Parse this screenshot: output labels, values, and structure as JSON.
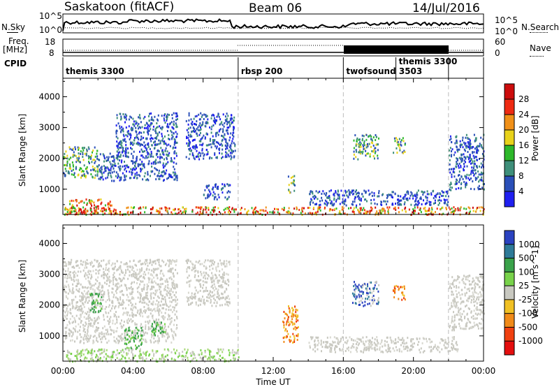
{
  "header": {
    "station": "Saskatoon (fitACF)",
    "beam": "Beam 06",
    "date": "14/Jul/2016"
  },
  "noise_panel": {
    "left_label": "N.Sky",
    "right_label": "N.Search",
    "left_ticks": [
      "10^5",
      "10^0"
    ],
    "right_ticks": [
      "10^5",
      "10^0"
    ]
  },
  "freq_panel": {
    "left_label_line1": "Freq.",
    "left_label_line2": "[MHz]",
    "right_label": "Nave",
    "left_ticks": [
      "18",
      "8"
    ],
    "right_ticks": [
      "60",
      "0"
    ]
  },
  "cpid_panel": {
    "label": "CPID",
    "segments": [
      {
        "name": "themis 3300",
        "start": 0,
        "end": 10
      },
      {
        "name": "rbsp 200",
        "start": 10,
        "end": 16
      },
      {
        "name": "twofsound 3503",
        "start": 16,
        "end": 19
      },
      {
        "name": "themis 3300",
        "start": 19,
        "end": 22
      }
    ]
  },
  "x_axis": {
    "title": "Time UT",
    "ticks": [
      "00:00",
      "04:00",
      "08:00",
      "12:00",
      "16:00",
      "20:00",
      "00:00"
    ],
    "range_hours": [
      0,
      24
    ]
  },
  "y_axis": {
    "title": "Slant Range [km]",
    "ticks": [
      "1000",
      "2000",
      "3000",
      "4000"
    ],
    "range_km": [
      180,
      4600
    ]
  },
  "power_colorbar": {
    "title": "Power [dB]",
    "ticks": [
      "4",
      "8",
      "12",
      "16",
      "20",
      "24",
      "28"
    ],
    "colors": [
      "#1f1ff0",
      "#2a4fb8",
      "#3e8f7a",
      "#2db82a",
      "#e8d21a",
      "#f09018",
      "#ee2a12",
      "#cc0c0c"
    ]
  },
  "velocity_colorbar": {
    "title": "Velocity [m s^-1]",
    "ticks": [
      "1000",
      "500",
      "100",
      "25",
      "-25",
      "-100",
      "-500",
      "-1000"
    ],
    "colors": [
      "#2a42c0",
      "#2e7a98",
      "#3aa24a",
      "#78d24a",
      "#c8c8c0",
      "#f0c024",
      "#f08a18",
      "#f04010",
      "#e40e0e"
    ]
  },
  "chart_data": {
    "type": "heatmap",
    "title": "Saskatoon (fitACF) Beam 06 14/Jul/2016",
    "xlabel": "Time UT",
    "ylabel": "Slant Range [km]",
    "xlim": [
      0,
      24
    ],
    "ylim": [
      180,
      4600
    ],
    "power_regions": [
      {
        "t0": 0.0,
        "t1": 2.0,
        "r0": 1400,
        "r1": 2400,
        "level": "med"
      },
      {
        "t0": 0.3,
        "t1": 2.8,
        "r0": 200,
        "r1": 700,
        "level": "high"
      },
      {
        "t0": 2.0,
        "t1": 6.5,
        "r0": 1300,
        "r1": 2200,
        "level": "low"
      },
      {
        "t0": 3.0,
        "t1": 6.5,
        "r0": 2200,
        "r1": 3500,
        "level": "low"
      },
      {
        "t0": 7.0,
        "t1": 9.8,
        "r0": 2000,
        "r1": 3500,
        "level": "low"
      },
      {
        "t0": 8.0,
        "t1": 9.5,
        "r0": 700,
        "r1": 1200,
        "level": "low"
      },
      {
        "t0": 0.0,
        "t1": 24.0,
        "r0": 200,
        "r1": 450,
        "level": "high"
      },
      {
        "t0": 12.8,
        "t1": 13.2,
        "r0": 900,
        "r1": 1500,
        "level": "med"
      },
      {
        "t0": 14.0,
        "t1": 22.0,
        "r0": 500,
        "r1": 1000,
        "level": "low"
      },
      {
        "t0": 16.5,
        "t1": 18.0,
        "r0": 2000,
        "r1": 2800,
        "level": "med"
      },
      {
        "t0": 18.8,
        "t1": 19.5,
        "r0": 2200,
        "r1": 2700,
        "level": "med"
      },
      {
        "t0": 22.0,
        "t1": 24.0,
        "r0": 1000,
        "r1": 2800,
        "level": "low"
      }
    ],
    "velocity_regions": [
      {
        "t0": 0.0,
        "t1": 6.5,
        "r0": 800,
        "r1": 3500,
        "level": "gray"
      },
      {
        "t0": 1.5,
        "t1": 2.2,
        "r0": 1800,
        "r1": 2400,
        "level": "green"
      },
      {
        "t0": 3.5,
        "t1": 4.5,
        "r0": 600,
        "r1": 1300,
        "level": "green"
      },
      {
        "t0": 5.0,
        "t1": 5.8,
        "r0": 1000,
        "r1": 1500,
        "level": "green"
      },
      {
        "t0": 7.0,
        "t1": 9.5,
        "r0": 2000,
        "r1": 3500,
        "level": "gray"
      },
      {
        "t0": 0.0,
        "t1": 10.0,
        "r0": 200,
        "r1": 600,
        "level": "lightgreen"
      },
      {
        "t0": 12.5,
        "t1": 13.4,
        "r0": 800,
        "r1": 2000,
        "level": "orange"
      },
      {
        "t0": 14.0,
        "t1": 22.5,
        "r0": 500,
        "r1": 1000,
        "level": "gray"
      },
      {
        "t0": 16.5,
        "t1": 18.0,
        "r0": 2000,
        "r1": 2800,
        "level": "blue"
      },
      {
        "t0": 18.8,
        "t1": 19.5,
        "r0": 2200,
        "r1": 2700,
        "level": "orange"
      },
      {
        "t0": 22.0,
        "t1": 24.0,
        "r0": 1200,
        "r1": 3000,
        "level": "gray"
      }
    ]
  }
}
